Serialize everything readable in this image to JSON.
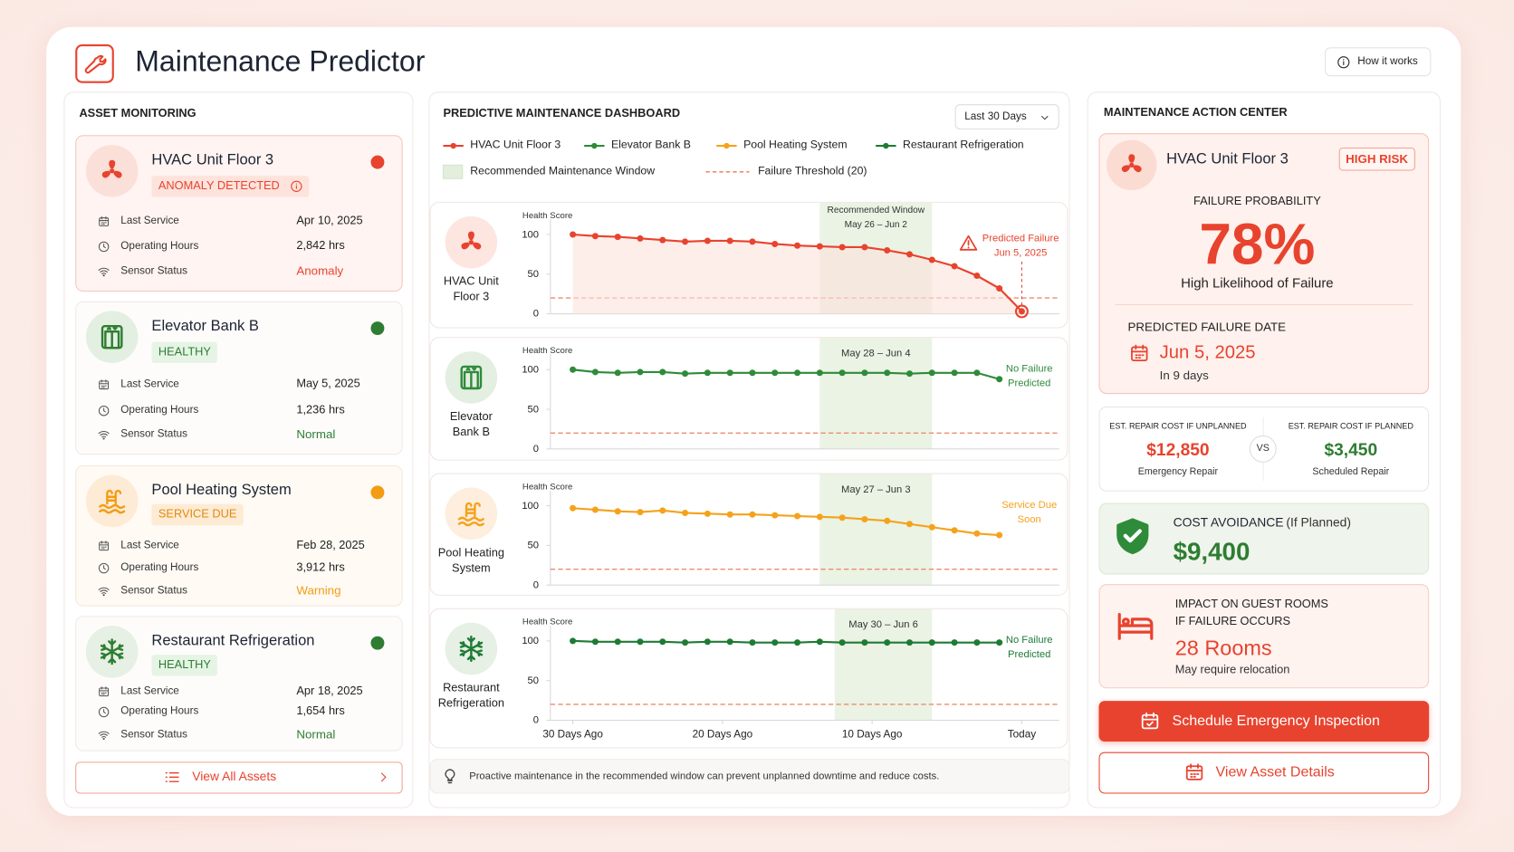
{
  "header": {
    "title": "Maintenance Predictor",
    "help": "How it works"
  },
  "assets": {
    "title": "ASSET MONITORING",
    "row_labels": [
      "Last Service",
      "Operating Hours",
      "Sensor Status"
    ],
    "items": [
      {
        "name": "HVAC Unit Floor 3",
        "status": "ANOMALY DETECTED",
        "last_service": "Apr 10, 2025",
        "hours": "2,842 hrs",
        "sensor": "Anomaly",
        "color": "#e8432e"
      },
      {
        "name": "Elevator Bank B",
        "status": "HEALTHY",
        "last_service": "May 5, 2025",
        "hours": "1,236 hrs",
        "sensor": "Normal",
        "color": "#2e7d32"
      },
      {
        "name": "Pool Heating System",
        "status": "SERVICE DUE",
        "last_service": "Feb 28, 2025",
        "hours": "3,912 hrs",
        "sensor": "Warning",
        "color": "#f39c12"
      },
      {
        "name": "Restaurant Refrigeration",
        "status": "HEALTHY",
        "last_service": "Apr 18, 2025",
        "hours": "1,654 hrs",
        "sensor": "Normal",
        "color": "#2e7d32"
      }
    ],
    "view_all": "View All Assets"
  },
  "dashboard": {
    "title": "PREDICTIVE MAINTENANCE DASHBOARD",
    "range": "Last 30 Days",
    "window_legend": "Recommended Maintenance Window",
    "threshold_legend": "Failure Threshold (20)",
    "threshold": 20,
    "y_label": "Health Score",
    "ylim": [
      0,
      112
    ],
    "yticks": [
      0,
      50,
      100
    ],
    "xlim": [
      -31.5,
      2.5
    ],
    "xticks": [
      {
        "value": -30,
        "label": "30 Days Ago"
      },
      {
        "value": -20,
        "label": "20 Days Ago"
      },
      {
        "value": -10,
        "label": "10 Days Ago"
      },
      {
        "value": 0,
        "label": "Today"
      }
    ],
    "window_title": "Recommended Window",
    "charts": [
      {
        "name": "HVAC Unit Floor 3",
        "label": [
          "HVAC Unit",
          "Floor 3"
        ],
        "color": "#e8432e",
        "x": [
          -30,
          -28.5,
          -27,
          -25.5,
          -24,
          -22.5,
          -21,
          -19.5,
          -18,
          -16.5,
          -15,
          -13.5,
          -12,
          -10.5,
          -9,
          -7.5,
          -6,
          -4.5,
          -3,
          -1.5,
          0
        ],
        "values": [
          100,
          98,
          97,
          95,
          93,
          91,
          92,
          92,
          91,
          88,
          86,
          85,
          84,
          84,
          80,
          75,
          68,
          60,
          48,
          32,
          3
        ],
        "window": [
          -13.5,
          -6
        ],
        "window_label": "May 26 – Jun 2",
        "note": [
          "Predicted Failure",
          "Jun 5, 2025"
        ]
      },
      {
        "name": "Elevator Bank B",
        "label": [
          "Elevator",
          "Bank B"
        ],
        "color": "#2e8b3a",
        "x": [
          -30,
          -28.5,
          -27,
          -25.5,
          -24,
          -22.5,
          -21,
          -19.5,
          -18,
          -16.5,
          -15,
          -13.5,
          -12,
          -10.5,
          -9,
          -7.5,
          -6,
          -4.5,
          -3,
          -1.5
        ],
        "values": [
          100,
          97,
          96,
          97,
          97,
          95,
          96,
          96,
          96,
          96,
          96,
          96,
          96,
          96,
          96,
          95,
          96,
          96,
          96,
          88
        ],
        "window": [
          -13.5,
          -6
        ],
        "window_label": "May 28 – Jun 4",
        "note": [
          "No Failure",
          "Predicted"
        ]
      },
      {
        "name": "Pool Heating System",
        "label": [
          "Pool Heating",
          "System"
        ],
        "color": "#f5a21b",
        "x": [
          -30,
          -28.5,
          -27,
          -25.5,
          -24,
          -22.5,
          -21,
          -19.5,
          -18,
          -16.5,
          -15,
          -13.5,
          -12,
          -10.5,
          -9,
          -7.5,
          -6,
          -4.5,
          -3,
          -1.5
        ],
        "values": [
          97,
          95,
          93,
          92,
          94,
          91,
          90,
          89,
          89,
          88,
          87,
          86,
          85,
          83,
          81,
          77,
          73,
          69,
          65,
          63
        ],
        "window": [
          -13.5,
          -6
        ],
        "window_label": "May 27 – Jun 3",
        "note": [
          "Service Due",
          "Soon"
        ]
      },
      {
        "name": "Restaurant Refrigeration",
        "label": [
          "Restaurant",
          "Refrigeration"
        ],
        "color": "#1e7b34",
        "x": [
          -30,
          -28.5,
          -27,
          -25.5,
          -24,
          -22.5,
          -21,
          -19.5,
          -18,
          -16.5,
          -15,
          -13.5,
          -12,
          -10.5,
          -9,
          -7.5,
          -6,
          -4.5,
          -3,
          -1.5
        ],
        "values": [
          100,
          99,
          99,
          99,
          99,
          98,
          99,
          99,
          98,
          98,
          98,
          99,
          98,
          98,
          98,
          98,
          98,
          98,
          98,
          98
        ],
        "window": [
          -12.5,
          -6
        ],
        "window_label": "May 30 – Jun 6",
        "note": [
          "No Failure",
          "Predicted"
        ]
      }
    ],
    "tip": "Proactive maintenance in the recommended window can prevent unplanned downtime and reduce costs."
  },
  "action_center": {
    "title": "MAINTENANCE ACTION CENTER",
    "asset": "HVAC Unit Floor 3",
    "risk": "HIGH RISK",
    "probability_label": "FAILURE PROBABILITY",
    "probability": "78%",
    "probability_note": "High Likelihood of Failure",
    "date_label": "PREDICTED FAILURE DATE",
    "date": "Jun 5, 2025",
    "days": "In 9 days",
    "unplanned": {
      "label": "EST. REPAIR COST IF UNPLANNED",
      "value": "$12,850",
      "note": "Emergency Repair"
    },
    "vs": "VS",
    "planned": {
      "label": "EST. REPAIR COST IF PLANNED",
      "value": "$3,450",
      "note": "Scheduled Repair"
    },
    "avoidance": {
      "label": "COST AVOIDANCE",
      "qualifier": "(If Planned)",
      "value": "$9,400"
    },
    "impact": {
      "lines": [
        "IMPACT ON GUEST ROOMS",
        "IF FAILURE OCCURS"
      ],
      "value": "28 Rooms",
      "note": "May require relocation"
    },
    "primary_button": "Schedule Emergency Inspection",
    "secondary_button": "View Asset Details"
  }
}
